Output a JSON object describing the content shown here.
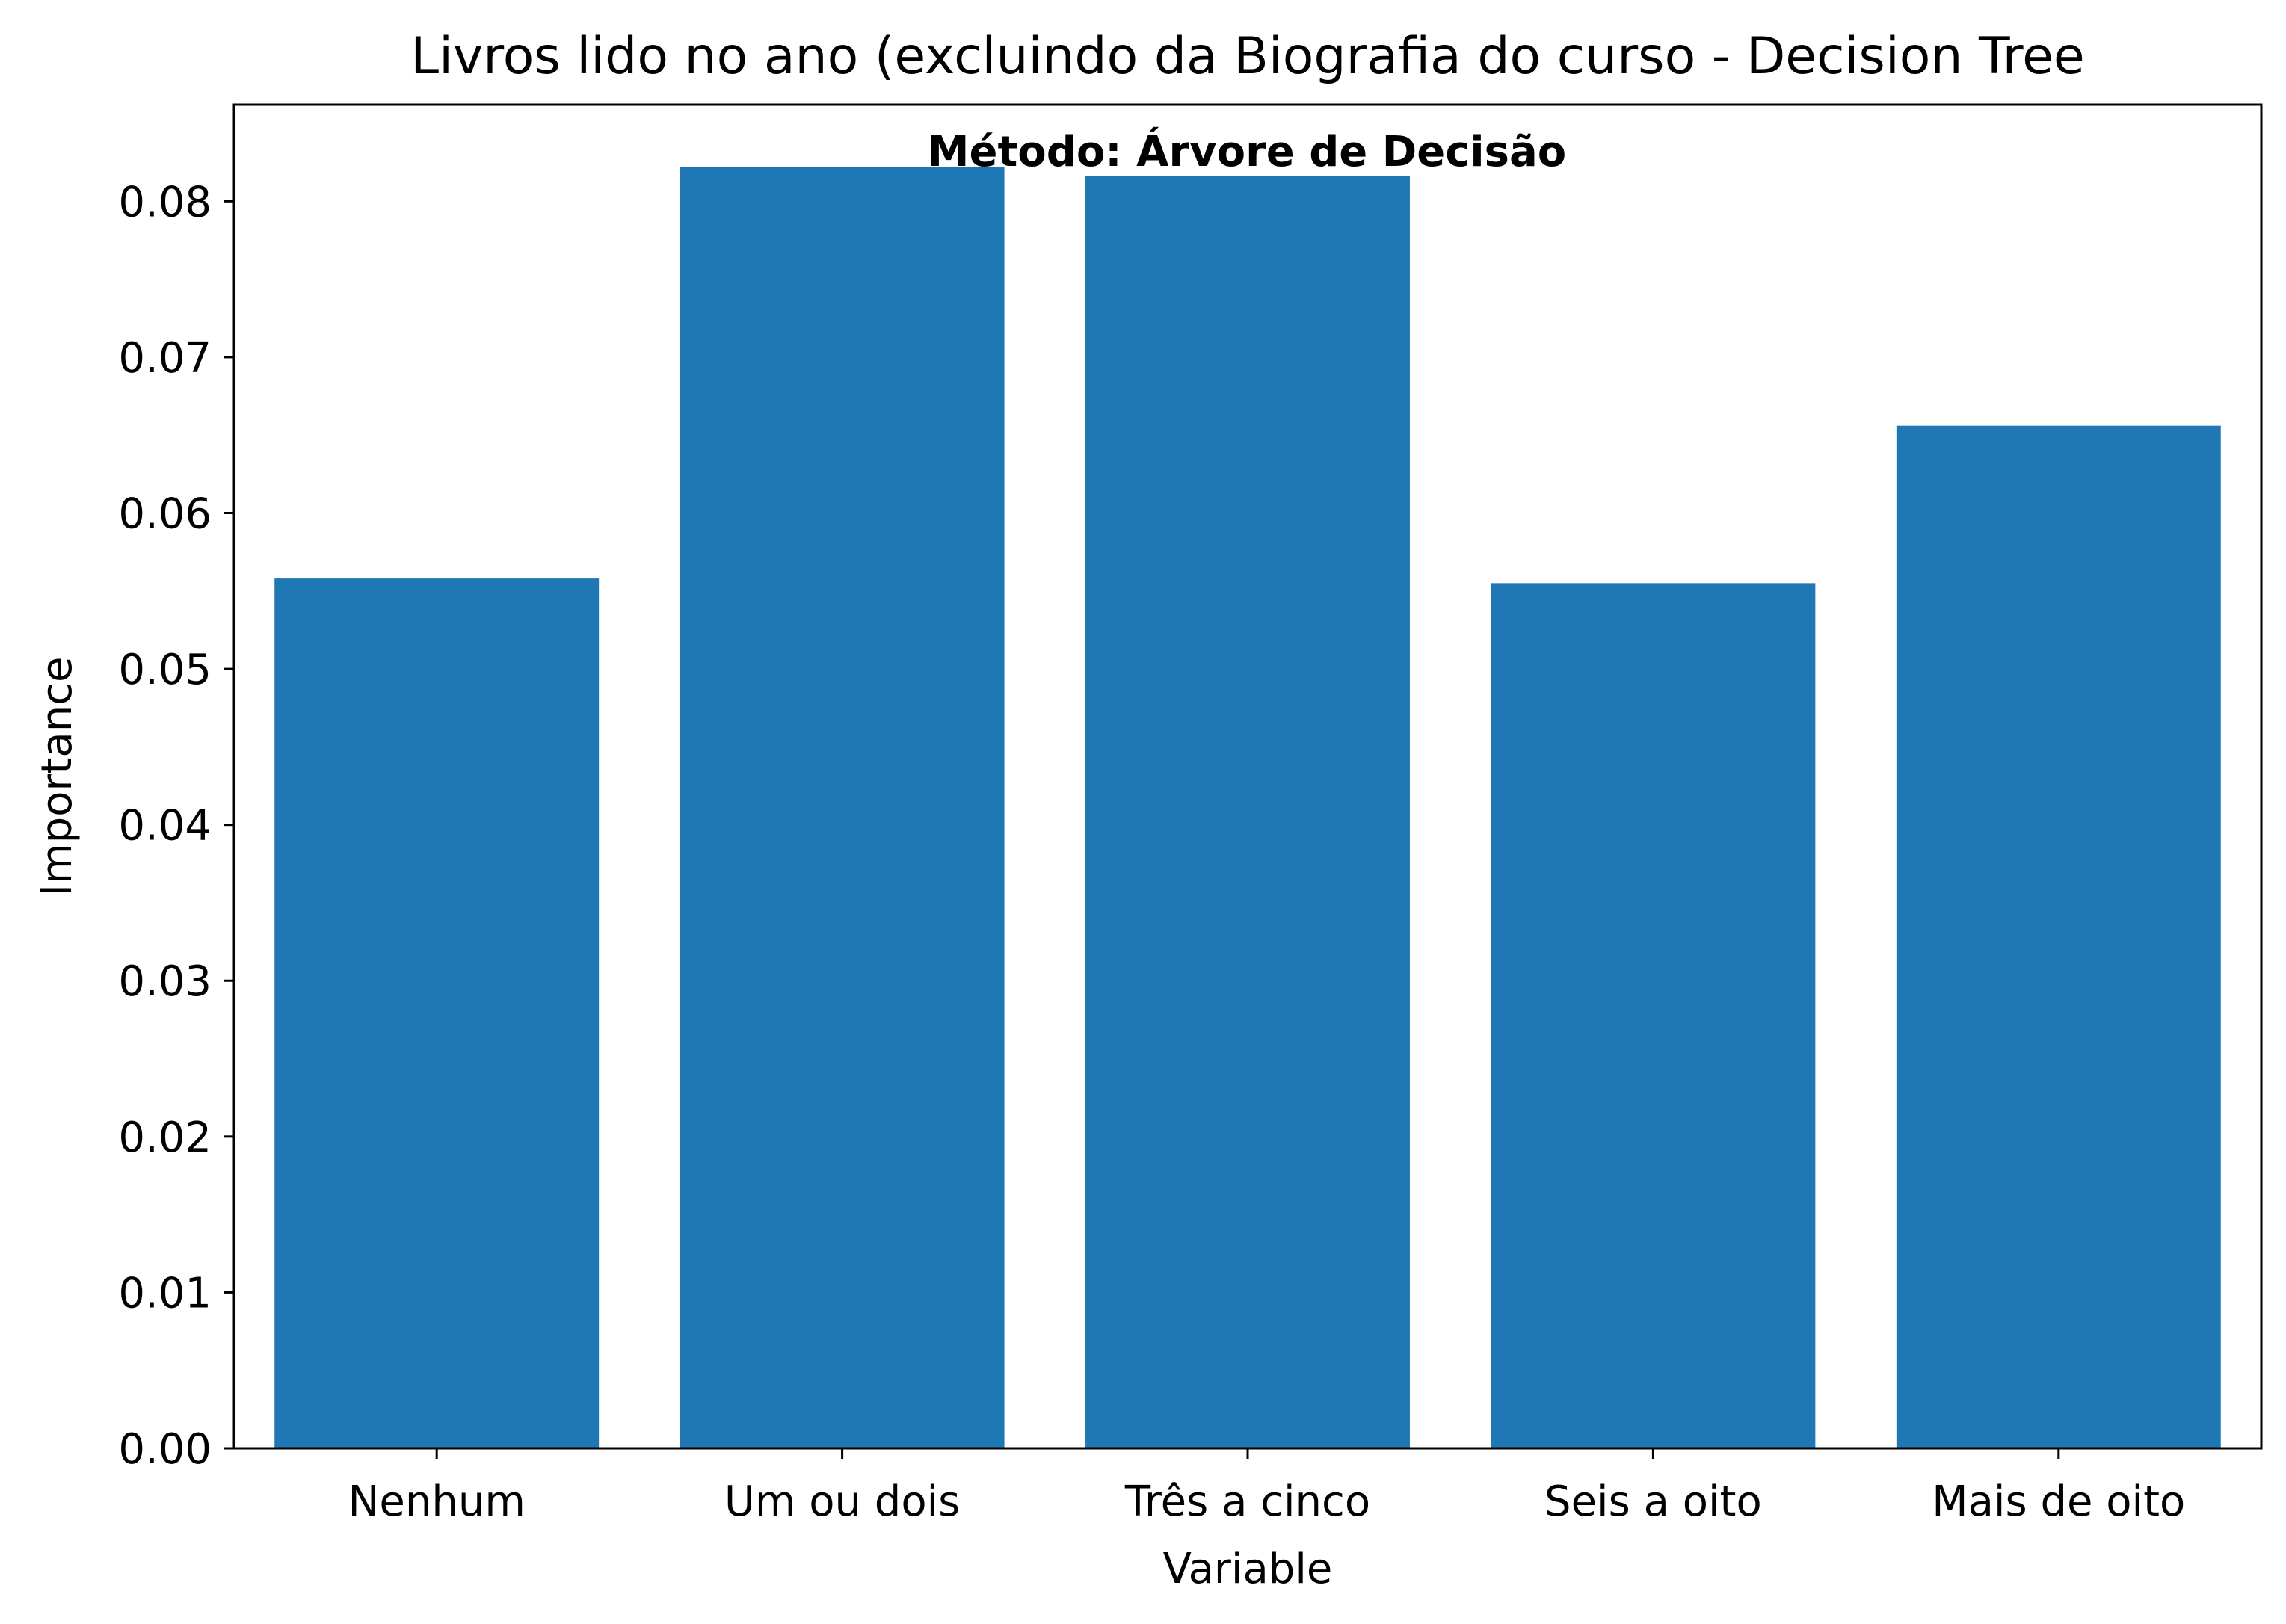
{
  "chart_data": {
    "type": "bar",
    "title": "Livros lido no ano (excluindo da Biografia do curso - Decision Tree",
    "annotation": "Método: Árvore de Decisão",
    "xlabel": "Variable",
    "ylabel": "Importance",
    "categories": [
      "Nenhum",
      "Um ou dois",
      "Três a cinco",
      "Seis a oito",
      "Mais de oito"
    ],
    "values": [
      0.0558,
      0.0822,
      0.0816,
      0.0555,
      0.0656
    ],
    "ylim": [
      0,
      0.0862
    ],
    "yticks": [
      0.0,
      0.01,
      0.02,
      0.03,
      0.04,
      0.05,
      0.06,
      0.07,
      0.08
    ],
    "ytick_labels": [
      "0.00",
      "0.01",
      "0.02",
      "0.03",
      "0.04",
      "0.05",
      "0.06",
      "0.07",
      "0.08"
    ],
    "bar_color": "#1f77b4",
    "grid": false,
    "legend": "none"
  }
}
